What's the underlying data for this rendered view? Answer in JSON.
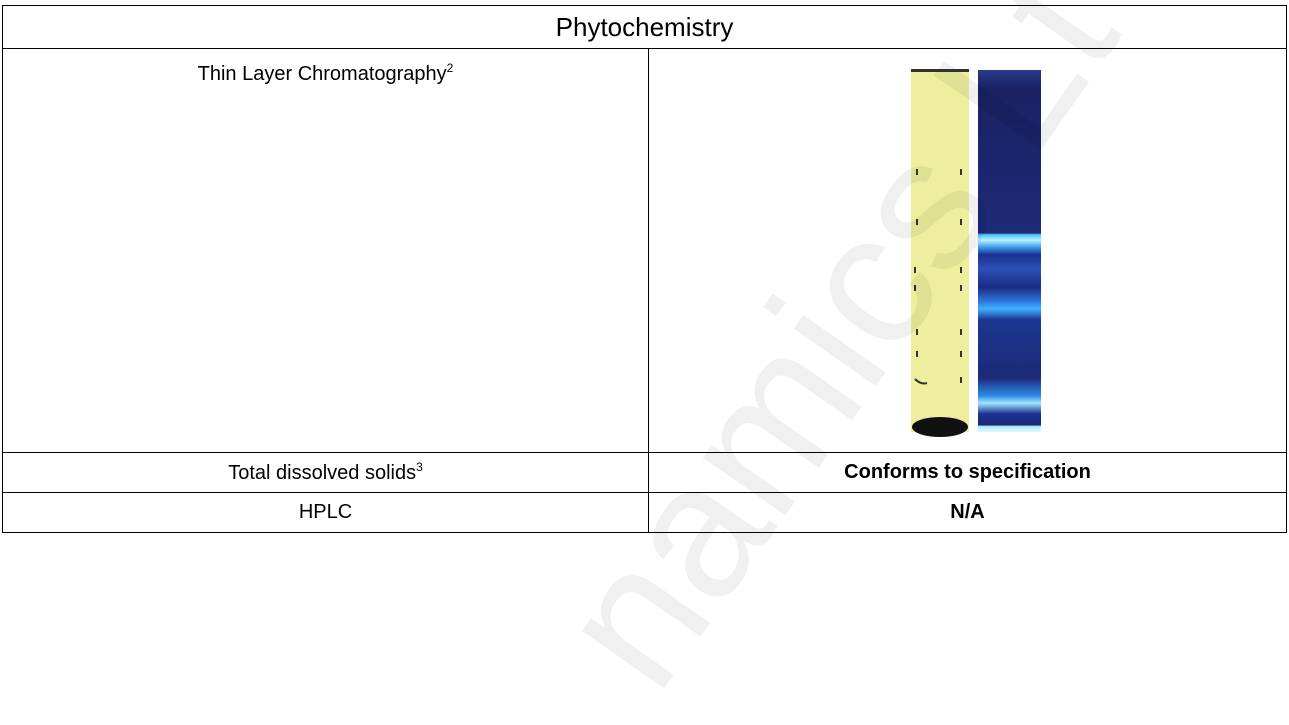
{
  "header": {
    "title": "Phytochemistry"
  },
  "table": {
    "rows": [
      {
        "label": "Thin Layer Chromatography",
        "note": "2"
      },
      {
        "label": "Total dissolved solids",
        "note": "3",
        "value": "Conforms to specification"
      },
      {
        "label": "HPLC",
        "value": "N/A"
      }
    ]
  },
  "watermark": "namics Lt"
}
